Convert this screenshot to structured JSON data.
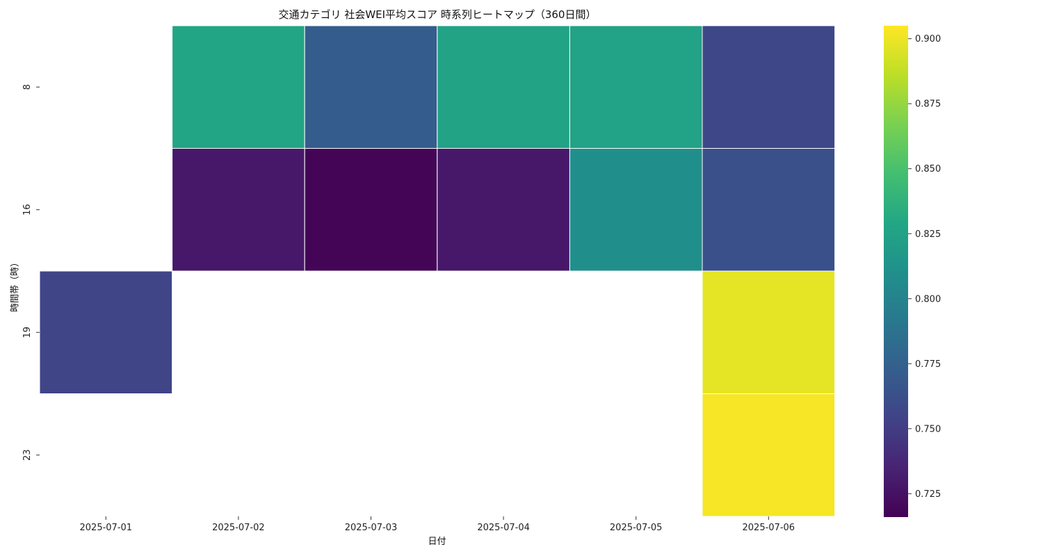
{
  "chart_data": {
    "type": "heatmap",
    "title": "交通カテゴリ 社会WEI平均スコア 時系列ヒートマップ（360日間）",
    "xlabel": "日付",
    "ylabel": "時間帯（時）",
    "x_categories": [
      "2025-07-01",
      "2025-07-02",
      "2025-07-03",
      "2025-07-04",
      "2025-07-05",
      "2025-07-06"
    ],
    "y_categories": [
      "8",
      "16",
      "19",
      "23"
    ],
    "values": [
      [
        null,
        0.828,
        0.772,
        0.826,
        0.825,
        0.757
      ],
      [
        null,
        0.729,
        0.718,
        0.729,
        0.81,
        0.763
      ],
      [
        0.755,
        null,
        null,
        null,
        null,
        0.898
      ],
      [
        null,
        null,
        null,
        null,
        null,
        0.903
      ]
    ],
    "colormap": "viridis",
    "colorbar": {
      "min": 0.716,
      "max": 0.905,
      "ticks": [
        "0.725",
        "0.750",
        "0.775",
        "0.800",
        "0.825",
        "0.850",
        "0.875",
        "0.900"
      ]
    },
    "missing_color": "#ffffff"
  }
}
